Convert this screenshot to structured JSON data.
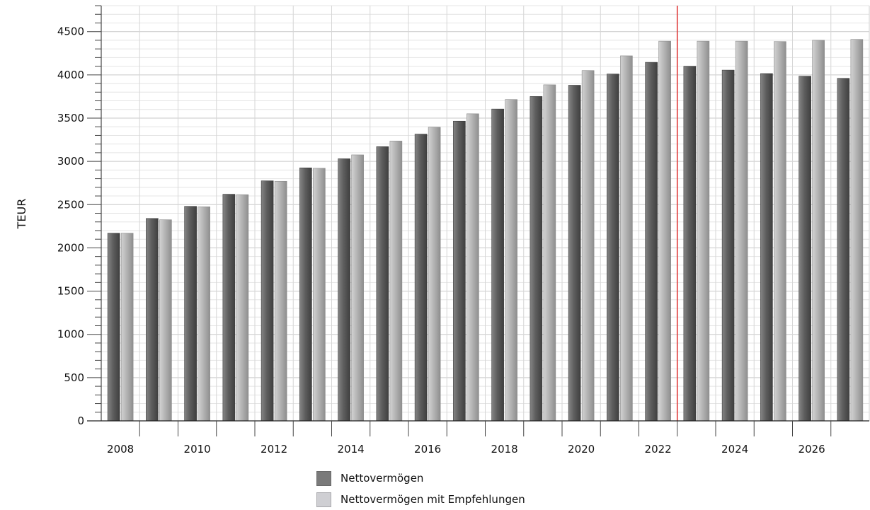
{
  "chart_data": {
    "type": "bar",
    "ylabel": "TEUR",
    "ylim": [
      0,
      4800
    ],
    "yticks": [
      0,
      500,
      1000,
      1500,
      2000,
      2500,
      3000,
      3500,
      4000,
      4500
    ],
    "ytick_labels": [
      "0",
      "500",
      "1000",
      "1500",
      "2000",
      "2500",
      "3000",
      "3500",
      "4000",
      "4500"
    ],
    "categories": [
      2008,
      2009,
      2010,
      2011,
      2012,
      2013,
      2014,
      2015,
      2016,
      2017,
      2018,
      2019,
      2020,
      2021,
      2022,
      2023,
      2024,
      2025,
      2026,
      2027
    ],
    "xtick_labels": [
      "2008",
      "2010",
      "2012",
      "2014",
      "2016",
      "2018",
      "2020",
      "2022",
      "2024",
      "2026"
    ],
    "grid": true,
    "marker_line_between": [
      2022,
      2023
    ],
    "series": [
      {
        "name": "Nettovermögen",
        "color": "#5f5f5f",
        "values": [
          2170,
          2340,
          2480,
          2620,
          2775,
          2925,
          3030,
          3170,
          3315,
          3465,
          3605,
          3750,
          3880,
          4010,
          4145,
          4100,
          4055,
          4015,
          3985,
          3960
        ]
      },
      {
        "name": "Nettovermögen mit Empfehlungen",
        "color": "#b5b5b5",
        "values": [
          2170,
          2325,
          2475,
          2615,
          2770,
          2920,
          3075,
          3235,
          3395,
          3550,
          3715,
          3885,
          4050,
          4220,
          4390,
          4390,
          4390,
          4385,
          4400,
          4410
        ]
      }
    ],
    "legend_position": "bottom-center"
  }
}
